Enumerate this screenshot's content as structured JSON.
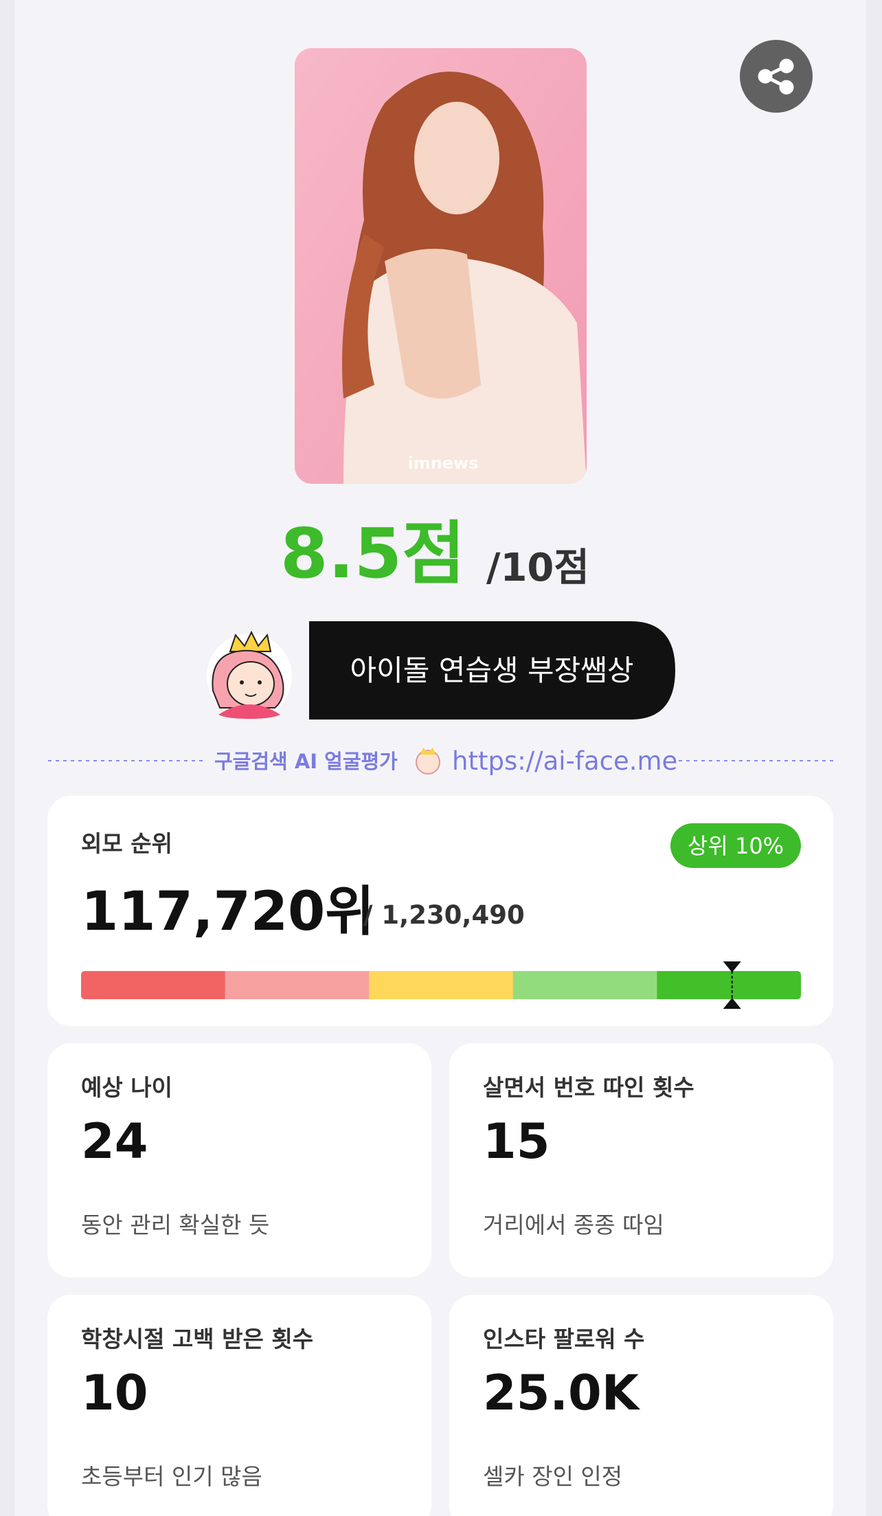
{
  "photo": {
    "watermark": "imnews"
  },
  "score": {
    "value": "8.5점",
    "max": "/10점"
  },
  "type_badge": "아이돌 연습생 부장쌤상",
  "promo": {
    "label": "구글검색 AI 얼굴평가",
    "url": "https://ai-face.me"
  },
  "rank_card": {
    "title": "외모 순위",
    "badge": "상위 10%",
    "rank": "117,720위",
    "total": "/ 1,230,490",
    "segment_colors": [
      "#f26464",
      "#f7a0a0",
      "#ffd75a",
      "#93dc7e",
      "#43bf2a"
    ]
  },
  "stats": [
    {
      "label": "예상 나이",
      "value": "24",
      "desc": "동안 관리 확실한 듯"
    },
    {
      "label": "살면서 번호 따인 횟수",
      "value": "15",
      "desc": "거리에서 종종 따임"
    },
    {
      "label": "학창시절 고백 받은 횟수",
      "value": "10",
      "desc": "초등부터 인기 많음"
    },
    {
      "label": "인스타 팔로워 수",
      "value": "25.0K",
      "desc": "셀카 장인 인정"
    }
  ]
}
